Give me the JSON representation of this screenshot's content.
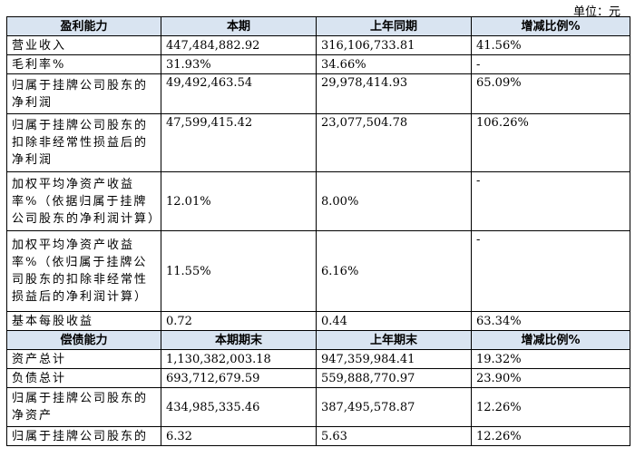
{
  "unit": "单位：元",
  "profit": {
    "header": [
      "盈利能力",
      "本期",
      "上年同期",
      "增减比例%"
    ],
    "rows": [
      {
        "label": "营业收入",
        "current": "447,484,882.92",
        "prior": "316,106,733.81",
        "change": "41.56%"
      },
      {
        "label": "毛利率%",
        "current": "31.93%",
        "prior": "34.66%",
        "change": "-"
      },
      {
        "label": "归属于挂牌公司股东的净利润",
        "current": "49,492,463.54",
        "prior": "29,978,414.93",
        "change": "65.09%"
      },
      {
        "label": "归属于挂牌公司股东的扣除非经常性损益后的净利润",
        "current": "47,599,415.42",
        "prior": "23,077,504.78",
        "change": "106.26%"
      },
      {
        "label": "加权平均净资产收益率%（依据归属于挂牌公司股东的净利润计算）",
        "current": "12.01%",
        "prior": "8.00%",
        "change": "-"
      },
      {
        "label": "加权平均净资产收益率%（依归属于挂牌公司股东的扣除非经常性损益后的净利润计算）",
        "current": "11.55%",
        "prior": "6.16%",
        "change": "-"
      },
      {
        "label": "基本每股收益",
        "current": "0.72",
        "prior": "0.44",
        "change": "63.34%"
      }
    ]
  },
  "solvency": {
    "header": [
      "偿债能力",
      "本期期末",
      "上年期末",
      "增减比例%"
    ],
    "rows": [
      {
        "label": "资产总计",
        "current": "1,130,382,003.18",
        "prior": "947,359,984.41",
        "change": "19.32%"
      },
      {
        "label": "负债总计",
        "current": "693,712,679.59",
        "prior": "559,888,770.97",
        "change": "23.90%"
      },
      {
        "label": "归属于挂牌公司股东的净资产",
        "current": "434,985,335.46",
        "prior": "387,495,578.87",
        "change": "12.26%"
      },
      {
        "label": "归属于挂牌公司股东的",
        "current": "6.32",
        "prior": "5.63",
        "change": "12.26%"
      }
    ]
  }
}
